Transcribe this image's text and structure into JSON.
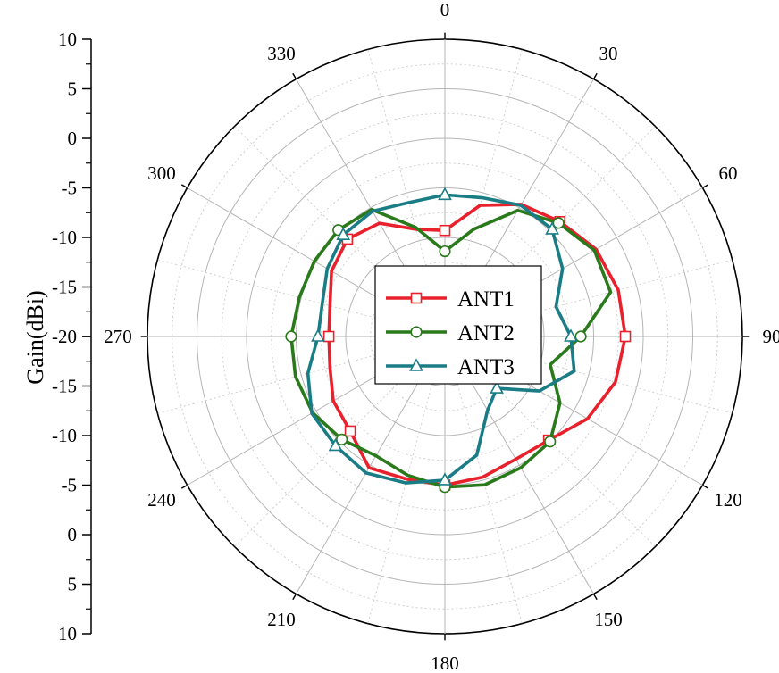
{
  "chart_data": {
    "type": "polar",
    "ylabel": "Gain(dBi)",
    "radial_range": [
      -20,
      10
    ],
    "radial_ticks": [
      -20,
      -15,
      -10,
      -5,
      0,
      5,
      10
    ],
    "radial_tick_labels_upper": [
      "10",
      "5",
      "0",
      "-5",
      "-10",
      "-15",
      "-20"
    ],
    "radial_tick_labels_lower": [
      "-15",
      "-10",
      "-5",
      "0",
      "5",
      "10"
    ],
    "angle_ticks": [
      "0",
      "30",
      "60",
      "90",
      "120",
      "150",
      "180",
      "210",
      "240",
      "270",
      "300",
      "330"
    ],
    "angle_direction": "clockwise",
    "zero_angle": "top",
    "grid": true,
    "legend_position": "center",
    "series": [
      {
        "name": "ANT1",
        "color": "#e8212c",
        "marker": "square",
        "angles": [
          0,
          15,
          30,
          45,
          60,
          75,
          90,
          105,
          120,
          135,
          150,
          165,
          180,
          195,
          210,
          225,
          240,
          255,
          270,
          285,
          300,
          315,
          330,
          345,
          360
        ],
        "values": [
          -9.3,
          -6.3,
          -4.6,
          -3.6,
          -2.4,
          -1.9,
          -1.8,
          -2.2,
          -3.4,
          -5.2,
          -5.7,
          -5.3,
          -5.0,
          -5.1,
          -4.7,
          -6.5,
          -7.0,
          -8.0,
          -8.3,
          -8.0,
          -6.8,
          -6.1,
          -6.8,
          -8.8,
          -9.3
        ]
      },
      {
        "name": "ANT2",
        "color": "#2a7a1c",
        "marker": "circle",
        "angles": [
          0,
          15,
          30,
          45,
          60,
          75,
          90,
          105,
          120,
          135,
          150,
          165,
          180,
          195,
          210,
          225,
          240,
          255,
          270,
          285,
          300,
          315,
          330,
          345,
          360
        ],
        "values": [
          -11.4,
          -8.8,
          -5.3,
          -3.8,
          -2.6,
          -2.7,
          -6.3,
          -9.0,
          -6.6,
          -5.0,
          -4.7,
          -4.5,
          -4.8,
          -5.5,
          -6.1,
          -5.3,
          -4.6,
          -4.4,
          -4.5,
          -4.8,
          -4.8,
          -4.8,
          -5.2,
          -8.6,
          -11.4
        ]
      },
      {
        "name": "ANT3",
        "color": "#1a7d86",
        "marker": "triangle",
        "angles": [
          0,
          15,
          30,
          45,
          60,
          75,
          90,
          105,
          120,
          135,
          150,
          165,
          180,
          195,
          210,
          225,
          240,
          255,
          270,
          285,
          300,
          315,
          330,
          345,
          360
        ],
        "values": [
          -5.7,
          -5.5,
          -4.7,
          -4.7,
          -6.3,
          -8.4,
          -7.3,
          -6.5,
          -9.0,
          -12.6,
          -11.4,
          -7.6,
          -5.5,
          -4.7,
          -4.1,
          -4.4,
          -4.5,
          -5.7,
          -7.2,
          -7.2,
          -6.3,
          -5.5,
          -5.4,
          -6.0,
          -5.7
        ]
      }
    ]
  }
}
